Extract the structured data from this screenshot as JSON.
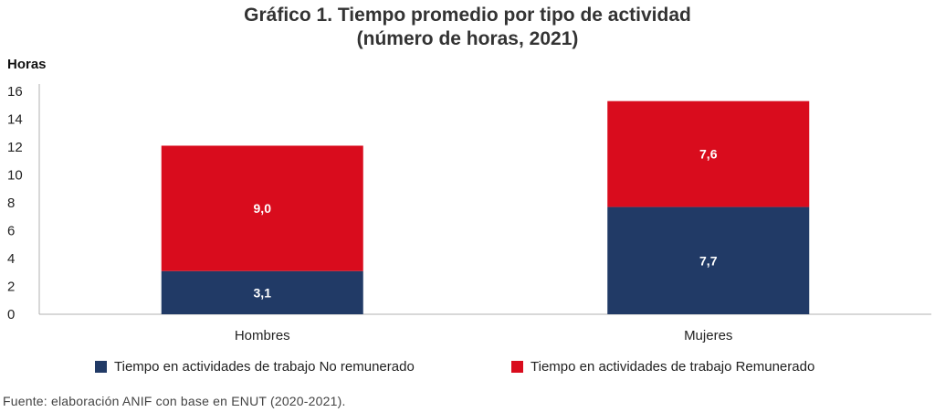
{
  "title_line1": "Gráfico 1. Tiempo promedio por tipo de actividad",
  "title_line2": "(número de horas, 2021)",
  "source": "Fuente: elaboración ANIF con base en ENUT (2020-2021).",
  "colors": {
    "no_remunerado": "#213a66",
    "remunerado": "#d90c1d"
  },
  "chart_data": {
    "type": "bar",
    "stacked": true,
    "categories": [
      "Hombres",
      "Mujeres"
    ],
    "series": [
      {
        "name": "Tiempo en actividades de trabajo No remunerado",
        "values": [
          3.1,
          7.7
        ],
        "labels": [
          "3,1",
          "7,7"
        ]
      },
      {
        "name": "Tiempo en actividades de trabajo Remunerado",
        "values": [
          9.0,
          7.6
        ],
        "labels": [
          "9,0",
          "7,6"
        ]
      }
    ],
    "ylabel": "Horas",
    "ylim": [
      0,
      16
    ],
    "yticks": [
      0,
      2,
      4,
      6,
      8,
      10,
      12,
      14,
      16
    ],
    "grid": false,
    "legend": "bottom"
  }
}
